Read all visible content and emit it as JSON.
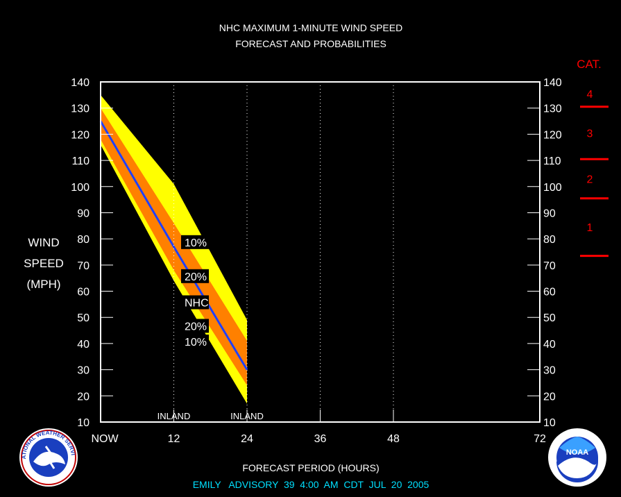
{
  "chart_data": {
    "type": "area",
    "title": "NHC MAXIMUM 1-MINUTE WIND SPEED",
    "subtitle": "FORECAST AND PROBABILITIES",
    "ylabel": [
      "WIND",
      "SPEED",
      "(MPH)"
    ],
    "xlabel": "FORECAST PERIOD (HOURS)",
    "footer": "EMILY   ADVISORY  39  4:00  AM  CDT  JUL  20  2005",
    "ylim": [
      10,
      140
    ],
    "xlim": [
      0,
      72
    ],
    "y_ticks": [
      10,
      20,
      30,
      40,
      50,
      60,
      70,
      80,
      90,
      100,
      110,
      120,
      130,
      140
    ],
    "x_ticks": [
      0,
      12,
      24,
      36,
      48,
      72
    ],
    "x_tick_labels": [
      "NOW",
      "12",
      "24",
      "36",
      "48",
      "72"
    ],
    "x_gridlines": [
      12,
      24,
      36,
      48
    ],
    "inland_markers": [
      {
        "x": 12,
        "label": "INLAND"
      },
      {
        "x": 24,
        "label": "INLAND"
      }
    ],
    "hours": [
      0,
      12,
      24
    ],
    "series": [
      {
        "name": "NHC",
        "values": [
          125,
          77,
          30
        ]
      },
      {
        "name": "20%",
        "lower": [
          118,
          68,
          24
        ],
        "upper": [
          130,
          86,
          41
        ]
      },
      {
        "name": "10%",
        "lower": [
          116,
          64,
          17
        ],
        "upper": [
          135,
          101,
          49
        ]
      }
    ],
    "prob_labels": [
      "10%",
      "20%",
      "NHC",
      "20%",
      "10%"
    ],
    "categories_scale": {
      "title": "CAT.",
      "categories": [
        {
          "label": "1",
          "min": 74,
          "max": 95
        },
        {
          "label": "2",
          "min": 96,
          "max": 110
        },
        {
          "label": "3",
          "min": 111,
          "max": 130
        },
        {
          "label": "4",
          "min": 131,
          "max": 155
        }
      ]
    },
    "colors": {
      "ten_pct": "#ffff00",
      "twenty_pct": "#ff8000",
      "nhc_line": "#2040ff",
      "category": "#ff0000",
      "footer": "#00e0ff"
    }
  },
  "logos": {
    "nws": "NATIONAL WEATHER SERVICE",
    "noaa": "NOAA"
  }
}
